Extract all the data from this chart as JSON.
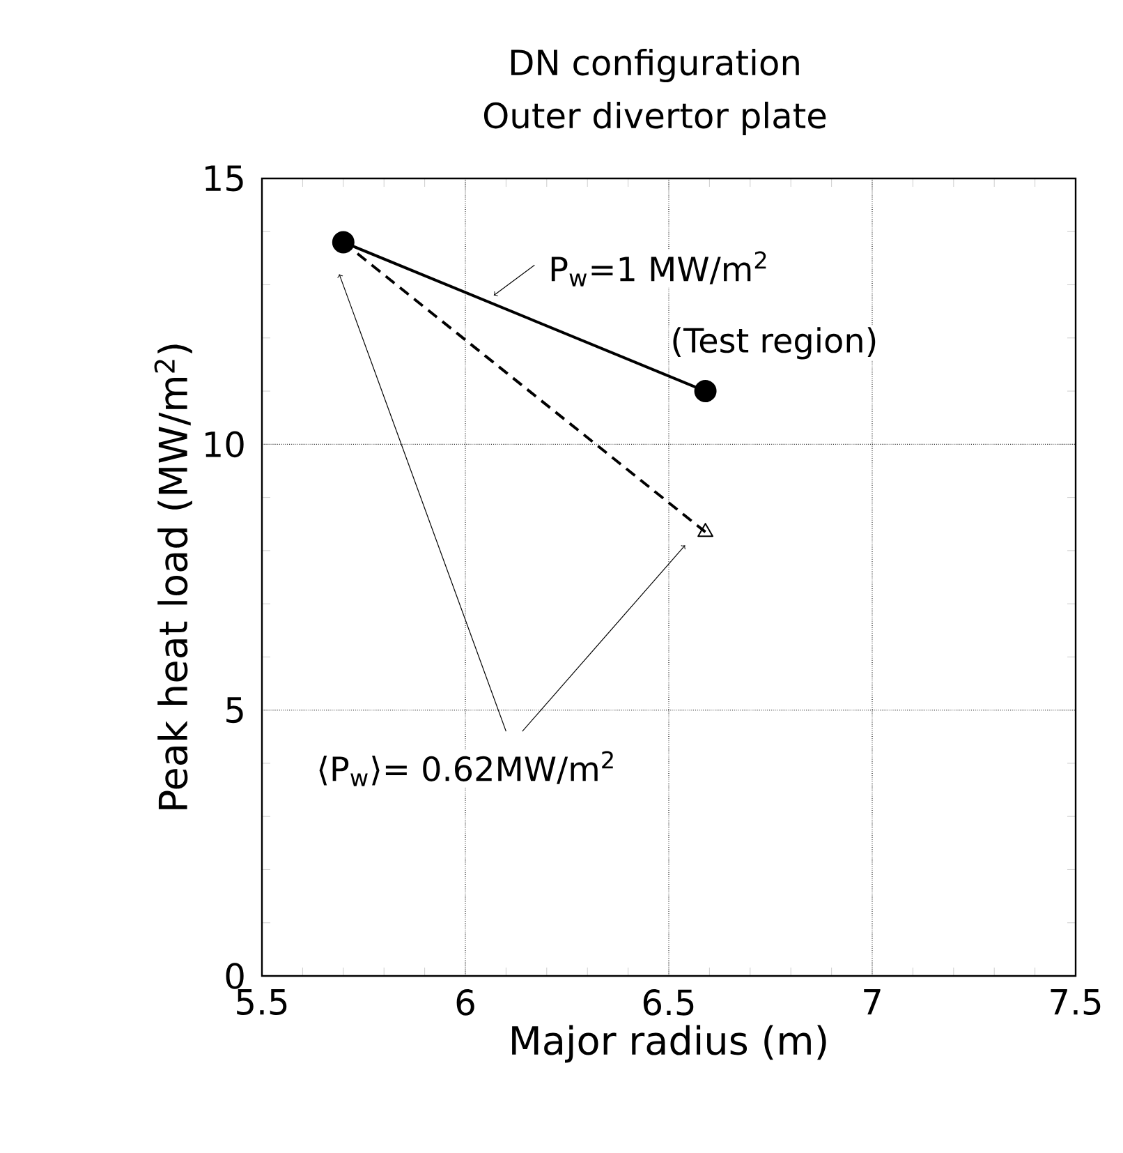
{
  "chart_data": {
    "type": "line",
    "title": "DN configuration",
    "subtitle": "Outer divertor plate",
    "xlabel": "Major radius (m)",
    "ylabel": "Peak heat load (MW/m$^{2}$)",
    "xlim": [
      5.5,
      7.5
    ],
    "xticks": [
      5.5,
      6,
      6.5,
      7,
      7.5
    ],
    "ylim": [
      0,
      15
    ],
    "yticks": [
      0,
      5,
      10,
      15
    ],
    "grid": true,
    "x": [
      5.7,
      6.59
    ],
    "series": [
      {
        "color": "#000000",
        "values": [
          13.8,
          11.0
        ],
        "marker": "circle",
        "line_style": "solid"
      },
      {
        "color": "#000000",
        "values": [
          13.8,
          8.35
        ],
        "marker": "triangle",
        "line_style": "dashed"
      }
    ],
    "annotations": [
      "P$_{w}$=1 MW/m$^{2}$",
      "(Test region)",
      "⟨P$_{w}$⟩=  0.62MW/m$^{2}$"
    ]
  }
}
